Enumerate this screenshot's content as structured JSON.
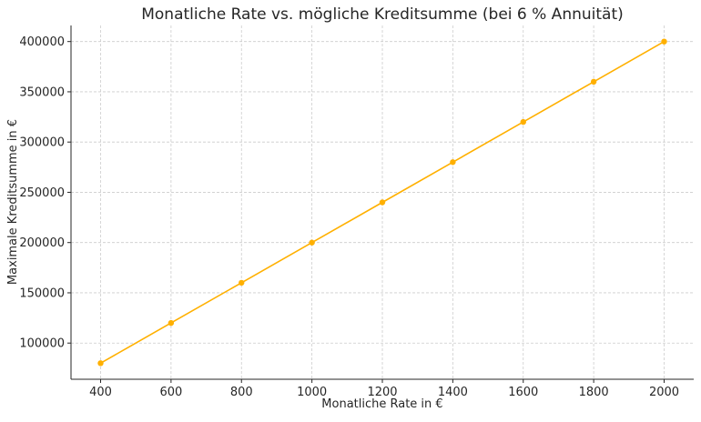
{
  "chart_data": {
    "type": "line",
    "title": "Monatliche Rate vs. mögliche Kreditsumme (bei 6 % Annuität)",
    "xlabel": "Monatliche Rate in €",
    "ylabel": "Maximale Kreditsumme in €",
    "x": [
      400,
      600,
      800,
      1000,
      1200,
      1400,
      1600,
      1800,
      2000
    ],
    "series": [
      {
        "values": [
          80000,
          120000,
          160000,
          200000,
          240000,
          280000,
          320000,
          360000,
          400000
        ],
        "color": "#FFB000"
      }
    ],
    "xlim": [
      316,
      2084
    ],
    "ylim": [
      64000,
      416000
    ],
    "xticks": [
      400,
      600,
      800,
      1000,
      1200,
      1400,
      1600,
      1800,
      2000
    ],
    "yticks": [
      100000,
      150000,
      200000,
      250000,
      300000,
      350000,
      400000
    ],
    "grid": true,
    "legend": "none",
    "marker": "circle"
  }
}
